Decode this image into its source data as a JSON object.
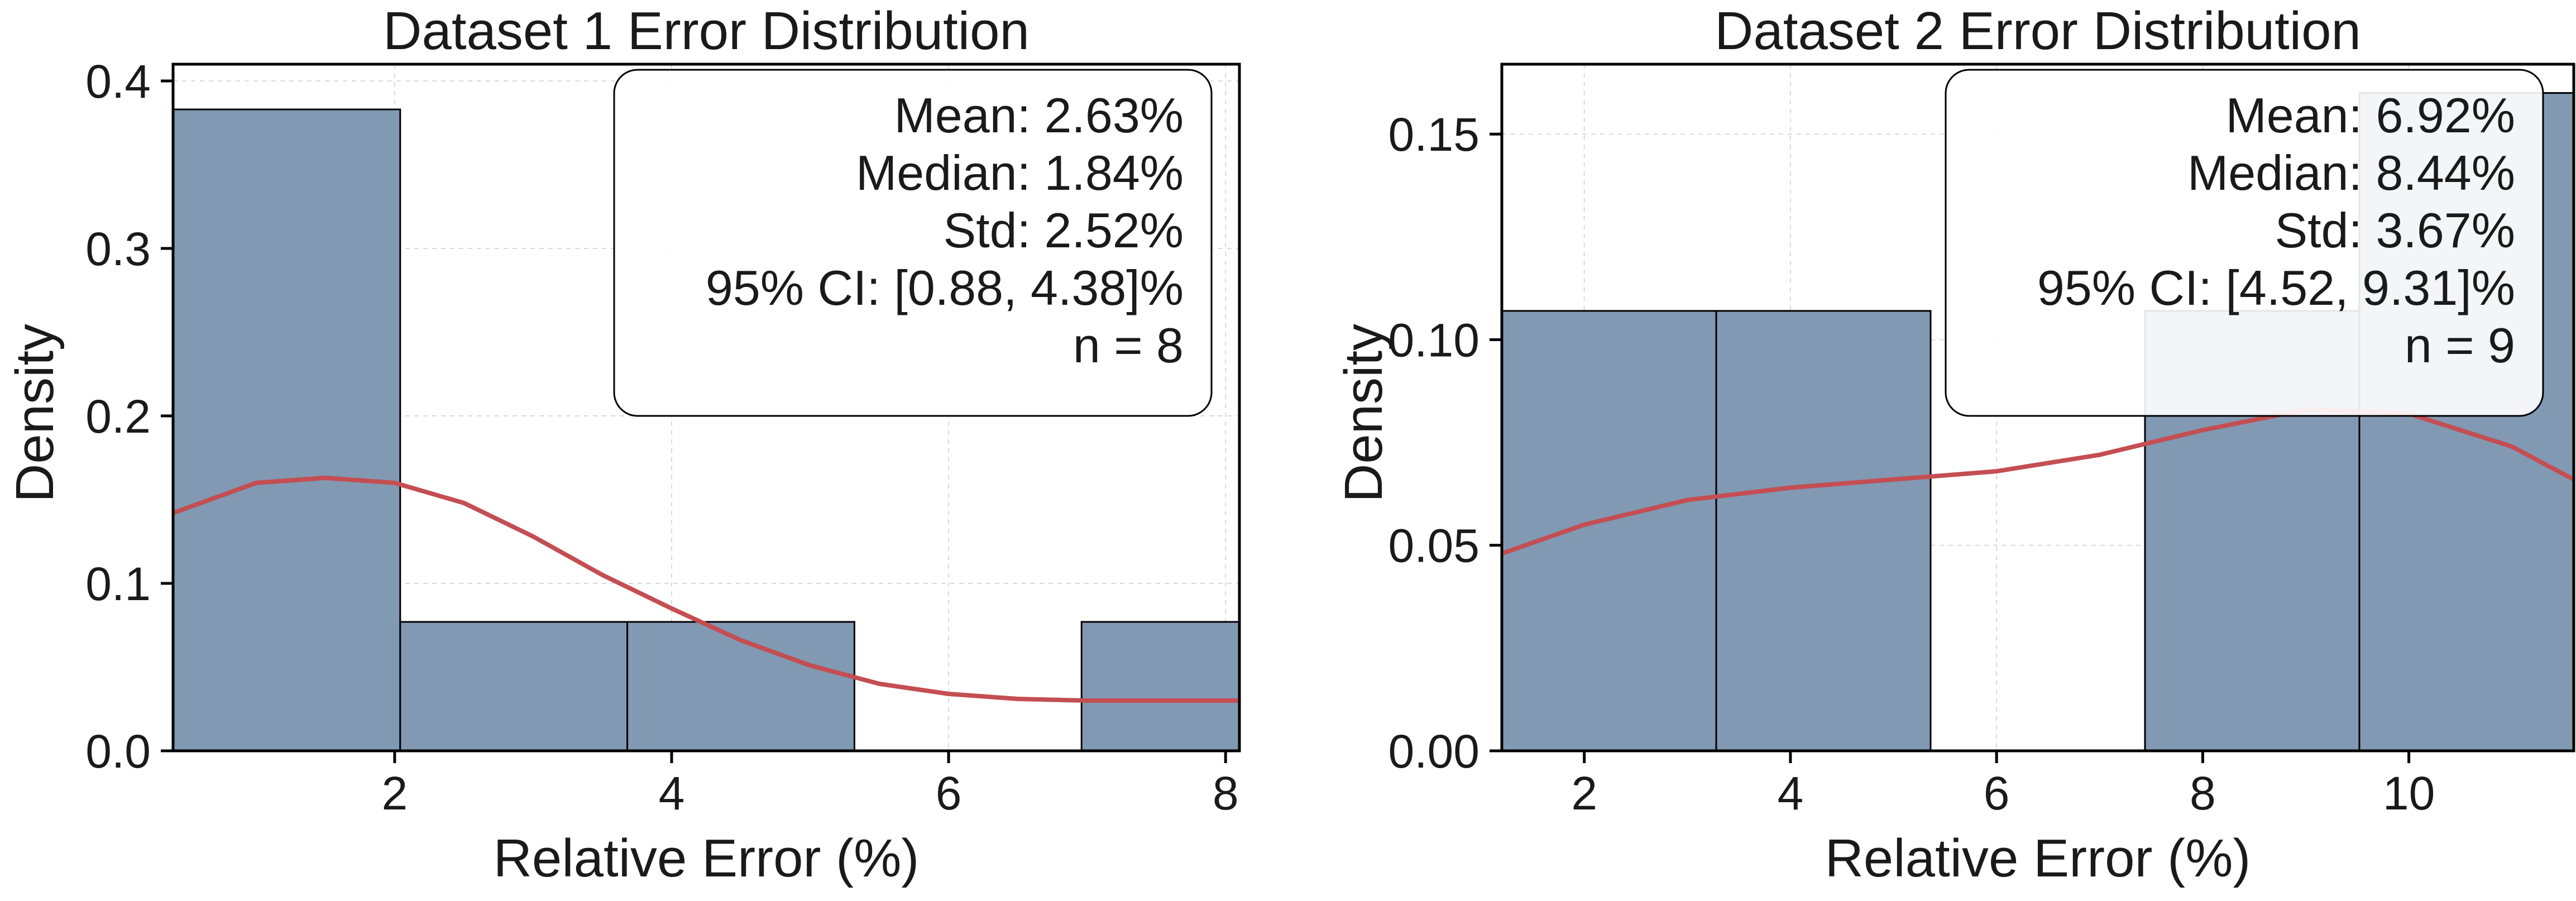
{
  "colors": {
    "bar_fill": "#8199b3",
    "kde_line": "#c44e52",
    "frame": "#000000"
  },
  "chart_data": [
    {
      "type": "bar",
      "title": "Dataset 1 Error Distribution",
      "xlabel": "Relative Error (%)",
      "ylabel": "Density",
      "xlim": [
        0.4,
        8.1
      ],
      "ylim": [
        0,
        0.41
      ],
      "xticks": [
        2,
        4,
        6,
        8
      ],
      "yticks": [
        0.0,
        0.1,
        0.2,
        0.3,
        0.4
      ],
      "ytick_labels": [
        "0.0",
        "0.1",
        "0.2",
        "0.3",
        "0.4"
      ],
      "grid": true,
      "bins": [
        {
          "x0": 0.4,
          "x1": 2.04,
          "density": 0.383
        },
        {
          "x0": 2.04,
          "x1": 3.68,
          "density": 0.077
        },
        {
          "x0": 3.68,
          "x1": 5.32,
          "density": 0.077
        },
        {
          "x0": 5.32,
          "x1": 6.96,
          "density": 0.0
        },
        {
          "x0": 6.96,
          "x1": 8.6,
          "density": 0.077
        }
      ],
      "kde": {
        "x": [
          0.4,
          1.0,
          1.5,
          2.0,
          2.5,
          3.0,
          3.5,
          4.0,
          4.5,
          5.0,
          5.5,
          6.0,
          6.5,
          7.0,
          7.5,
          8.1
        ],
        "y": [
          0.142,
          0.16,
          0.163,
          0.16,
          0.148,
          0.128,
          0.105,
          0.085,
          0.066,
          0.051,
          0.04,
          0.034,
          0.031,
          0.03,
          0.03,
          0.03
        ]
      },
      "stats_box": {
        "position": "top-right",
        "lines": [
          "Mean: 2.63%",
          "Median: 1.84%",
          "Std: 2.52%",
          "95% CI: [0.88, 4.38]%",
          "n = 8"
        ]
      }
    },
    {
      "type": "bar",
      "title": "Dataset 2 Error Distribution",
      "xlabel": "Relative Error (%)",
      "ylabel": "Density",
      "xlim": [
        1.2,
        11.6
      ],
      "ylim": [
        0,
        0.167
      ],
      "xticks": [
        2,
        4,
        6,
        8,
        10
      ],
      "yticks": [
        0.0,
        0.05,
        0.1,
        0.15
      ],
      "ytick_labels": [
        "0.00",
        "0.05",
        "0.10",
        "0.15"
      ],
      "grid": true,
      "bins": [
        {
          "x0": 1.2,
          "x1": 3.28,
          "density": 0.107
        },
        {
          "x0": 3.28,
          "x1": 5.36,
          "density": 0.107
        },
        {
          "x0": 5.36,
          "x1": 7.44,
          "density": 0.0
        },
        {
          "x0": 7.44,
          "x1": 9.52,
          "density": 0.107
        },
        {
          "x0": 9.52,
          "x1": 11.6,
          "density": 0.16
        }
      ],
      "kde": {
        "x": [
          1.2,
          2.0,
          3.0,
          4.0,
          5.0,
          6.0,
          7.0,
          8.0,
          9.0,
          10.0,
          11.0,
          11.6
        ],
        "y": [
          0.048,
          0.055,
          0.061,
          0.064,
          0.066,
          0.068,
          0.072,
          0.078,
          0.083,
          0.082,
          0.074,
          0.066
        ]
      },
      "stats_box": {
        "position": "top-right",
        "lines": [
          "Mean: 6.92%",
          "Median: 8.44%",
          "Std: 3.67%",
          "95% CI: [4.52, 9.31]%",
          "n = 9"
        ]
      }
    }
  ]
}
